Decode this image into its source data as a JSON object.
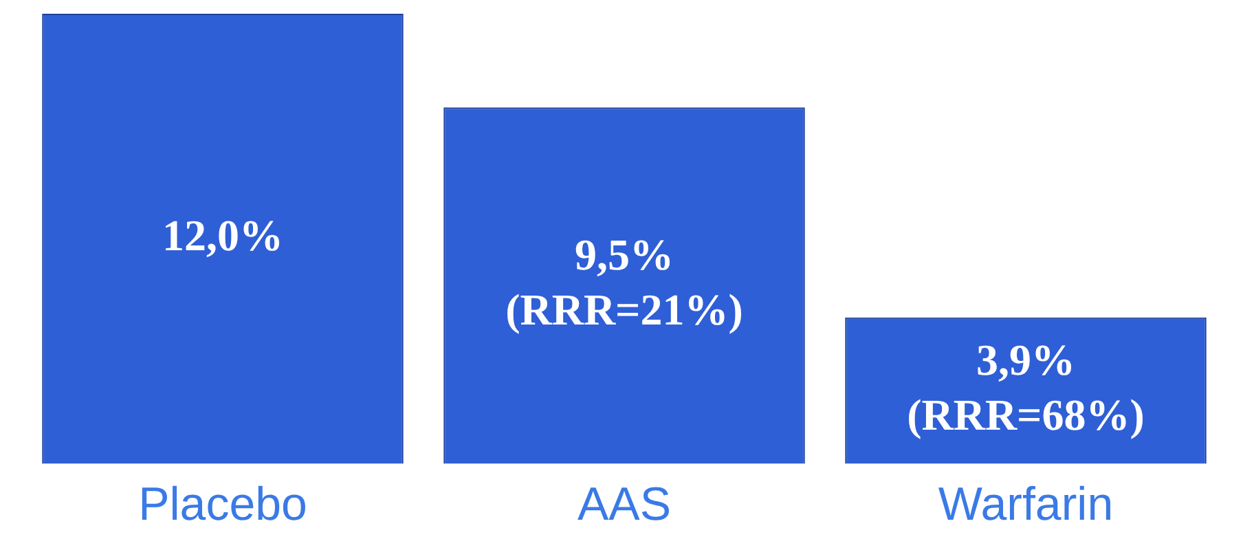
{
  "chart_data": {
    "type": "bar",
    "categories": [
      "Placebo",
      "AAS",
      "Warfarin"
    ],
    "values": [
      12.0,
      9.5,
      3.9
    ],
    "color": "#2f5fd6",
    "value_labels": [
      "12,0%",
      "9,5% (RRR=21%)",
      "3,9% (RRR=68%)"
    ],
    "relative": false,
    "grid": false,
    "legend": false
  }
}
